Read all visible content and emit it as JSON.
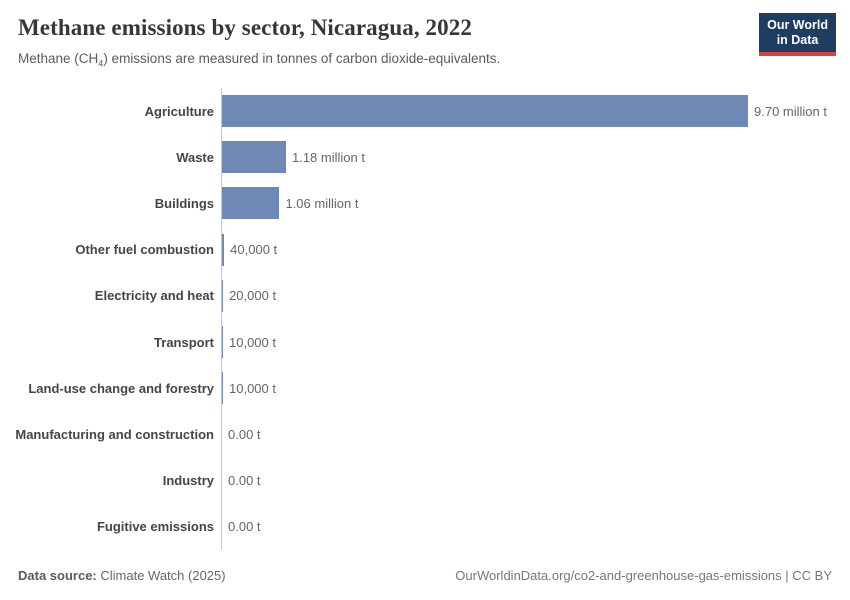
{
  "header": {
    "title": "Methane emissions by sector, Nicaragua, 2022",
    "subtitle_prefix": "Methane (CH",
    "subtitle_sub": "4",
    "subtitle_suffix": ") emissions are measured in tonnes of carbon dioxide-equivalents.",
    "logo_line1": "Our World",
    "logo_line2": "in Data"
  },
  "chart_data": {
    "type": "bar",
    "orientation": "horizontal",
    "title": "Methane emissions by sector, Nicaragua, 2022",
    "subtitle": "Methane (CH₄) emissions are measured in tonnes of carbon dioxide-equivalents.",
    "unit": "t",
    "categories": [
      "Agriculture",
      "Waste",
      "Buildings",
      "Other fuel combustion",
      "Electricity and heat",
      "Transport",
      "Land-use change and forestry",
      "Manufacturing and construction",
      "Industry",
      "Fugitive emissions"
    ],
    "values": [
      9700000,
      1180000,
      1060000,
      40000,
      20000,
      10000,
      10000,
      0,
      0,
      0
    ],
    "value_labels": [
      "9.70 million t",
      "1.18 million t",
      "1.06 million t",
      "40,000 t",
      "20,000 t",
      "10,000 t",
      "10,000 t",
      "0.00 t",
      "0.00 t",
      "0.00 t"
    ],
    "xlim": [
      0,
      9700000
    ],
    "grid": false,
    "legend": false
  },
  "footer": {
    "datasource_label": "Data source:",
    "datasource_value": " Climate Watch (2025)",
    "attribution": "OurWorldinData.org/co2-and-greenhouse-gas-emissions | CC BY"
  },
  "colors": {
    "bar-color": "#6e89b6",
    "axis-color": "#c8c8c8",
    "logo-navy": "#1d3d63",
    "logo-red": "#d8443c"
  }
}
